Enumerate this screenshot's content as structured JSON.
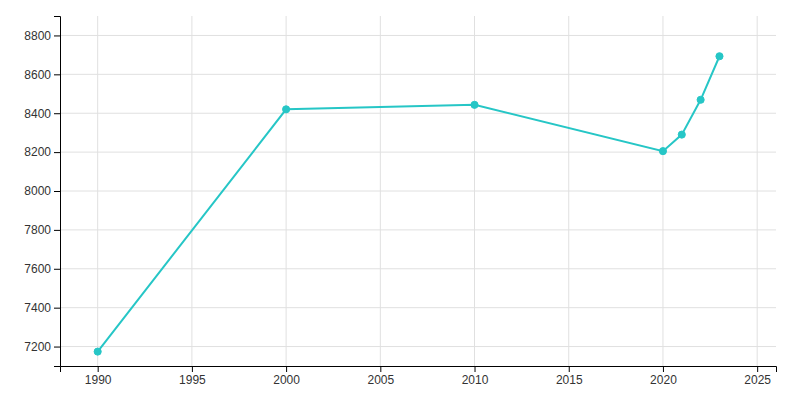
{
  "chart_data": {
    "type": "line",
    "x": [
      1990,
      2000,
      2010,
      2020,
      2021,
      2022,
      2023
    ],
    "values": [
      7174,
      8420,
      8443,
      8205,
      8290,
      8469,
      8693
    ],
    "color": "#26C6C6",
    "marker": "circle",
    "xlim": [
      1988,
      2026
    ],
    "ylim": [
      7100,
      8900
    ],
    "xticks": [
      1990,
      1995,
      2000,
      2005,
      2010,
      2015,
      2020,
      2025
    ],
    "yticks": [
      7200,
      7400,
      7600,
      7800,
      8000,
      8200,
      8400,
      8600,
      8800
    ],
    "grid": true
  }
}
